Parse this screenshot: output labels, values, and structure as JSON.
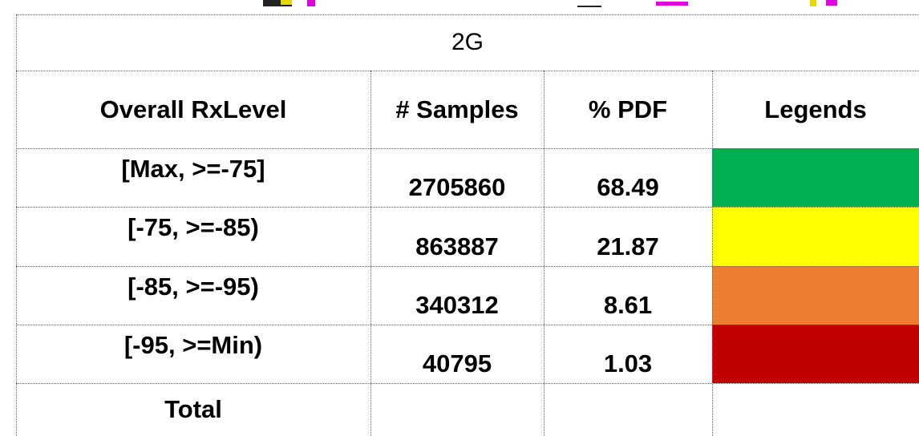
{
  "table": {
    "title": "2G",
    "header": [
      "Overall RxLevel",
      "# Samples",
      "% PDF",
      "Legends"
    ],
    "rows": [
      {
        "range": "[Max, >=-75]",
        "samples": 2705860,
        "pdf": 68.49,
        "color": "#00b050"
      },
      {
        "range": "[-75, >=-85)",
        "samples": 863887,
        "pdf": 21.87,
        "color": "#ffff00"
      },
      {
        "range": "[-85, >=-95)",
        "samples": 340312,
        "pdf": 8.61,
        "color": "#ed7d31"
      },
      {
        "range": "[-95, >=Min)",
        "samples": 40795,
        "pdf": 1.03,
        "color": "#c00000"
      }
    ],
    "total": "Total"
  }
}
